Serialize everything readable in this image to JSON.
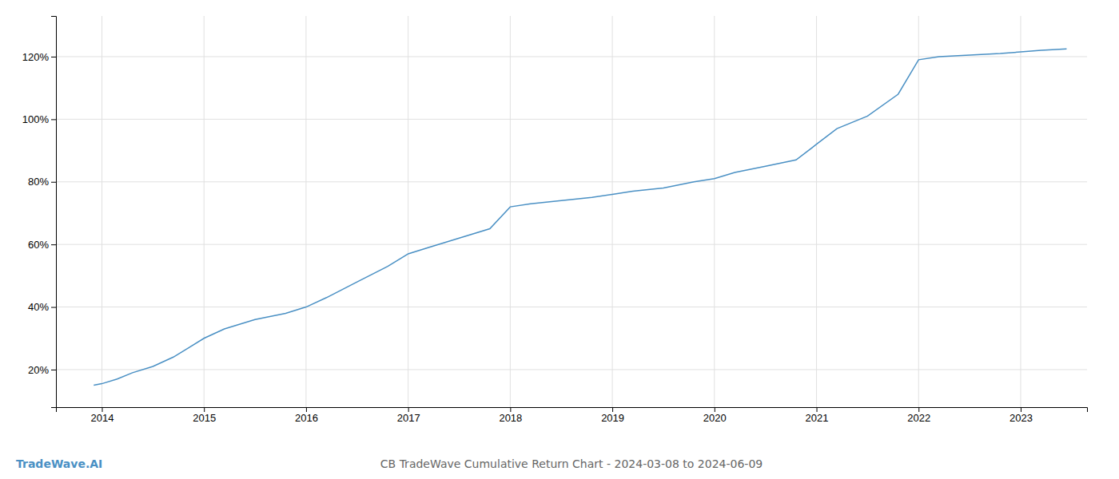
{
  "chart_data": {
    "type": "line",
    "title": "CB TradeWave Cumulative Return Chart - 2024-03-08 to 2024-06-09",
    "annotations": [
      {
        "text": "TradeWave.AI",
        "color": "#4a90c4"
      }
    ],
    "color": "#4a90c4",
    "grid": true,
    "x": [
      2013.92,
      2014.0,
      2014.15,
      2014.3,
      2014.5,
      2014.7,
      2014.85,
      2015.0,
      2015.2,
      2015.5,
      2015.8,
      2016.0,
      2016.2,
      2016.5,
      2016.8,
      2017.0,
      2017.2,
      2017.5,
      2017.8,
      2018.0,
      2018.2,
      2018.5,
      2018.8,
      2019.0,
      2019.2,
      2019.5,
      2019.8,
      2020.0,
      2020.2,
      2020.5,
      2020.8,
      2021.0,
      2021.2,
      2021.5,
      2021.8,
      2022.0,
      2022.2,
      2022.5,
      2022.8,
      2023.0,
      2023.2,
      2023.45
    ],
    "values": [
      15,
      15.5,
      17,
      19,
      21,
      24,
      27,
      30,
      33,
      36,
      38,
      40,
      43,
      48,
      53,
      57,
      59,
      62,
      65,
      72,
      73,
      74,
      75,
      76,
      77,
      78,
      80,
      81,
      83,
      85,
      87,
      92,
      97,
      101,
      108,
      119,
      120,
      120.5,
      121,
      121.5,
      122,
      122.5
    ],
    "xlim": [
      2013.55,
      2023.65
    ],
    "xticks": [
      2014,
      2015,
      2016,
      2017,
      2018,
      2019,
      2020,
      2021,
      2022,
      2023
    ],
    "ylim": [
      8,
      133
    ],
    "yticks": [
      {
        "value": 20,
        "label": "20%"
      },
      {
        "value": 40,
        "label": "40%"
      },
      {
        "value": 60,
        "label": "60%"
      },
      {
        "value": 80,
        "label": "80%"
      },
      {
        "value": 100,
        "label": "100%"
      },
      {
        "value": 120,
        "label": "120%"
      }
    ]
  }
}
